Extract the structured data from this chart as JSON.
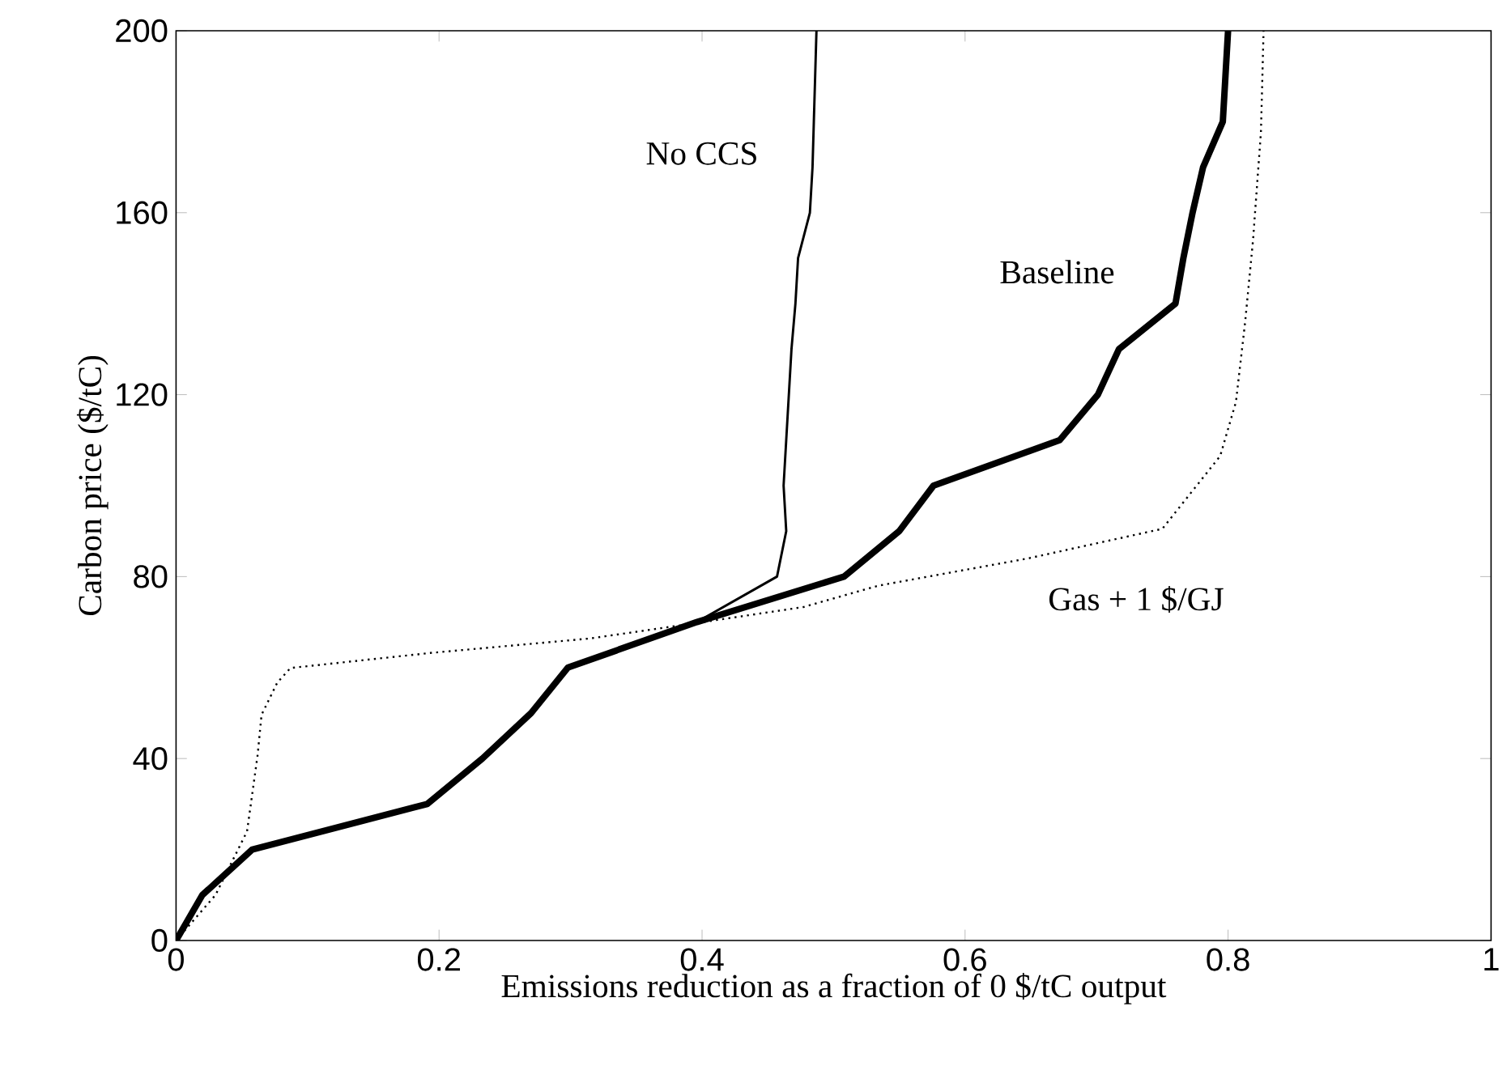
{
  "chart_data": {
    "type": "line",
    "xlabel": "Emissions reduction as a fraction of 0 $/tC output",
    "ylabel": "Carbon price ($/tC)",
    "xlim": [
      0,
      1
    ],
    "ylim": [
      0,
      200
    ],
    "xticks": [
      0,
      0.2,
      0.4,
      0.6,
      0.8,
      1
    ],
    "yticks": [
      0,
      40,
      80,
      120,
      160,
      200
    ],
    "grid": false,
    "legend": false,
    "marker": "none",
    "series": [
      {
        "name": "No CCS",
        "color": "#000000",
        "line_style": "solid",
        "x": [
          0,
          0.02,
          0.058,
          0.191,
          0.233,
          0.27,
          0.298,
          0.396,
          0.457,
          0.464,
          0.462,
          0.464,
          0.466,
          0.468,
          0.471,
          0.473,
          0.482,
          0.484,
          0.485,
          0.486,
          0.487
        ],
        "values": [
          0,
          10,
          20,
          30,
          40,
          50,
          60,
          70,
          80,
          90,
          100,
          110,
          120,
          130,
          140,
          150,
          160,
          170,
          180,
          190,
          200
        ]
      },
      {
        "name": "Baseline",
        "color": "#000000",
        "line_style": "solid",
        "x": [
          0,
          0.02,
          0.058,
          0.191,
          0.233,
          0.27,
          0.298,
          0.396,
          0.508,
          0.55,
          0.576,
          0.672,
          0.701,
          0.717,
          0.76,
          0.766,
          0.773,
          0.781,
          0.796,
          0.798,
          0.8
        ],
        "values": [
          0,
          10,
          20,
          30,
          40,
          50,
          60,
          70,
          80,
          90,
          100,
          110,
          120,
          130,
          140,
          150,
          160,
          170,
          180,
          190,
          200
        ]
      },
      {
        "name": "Gas + 1 $/GJ",
        "color": "#000000",
        "line_style": "dotted",
        "x": [
          0,
          0.03,
          0.054,
          0.062,
          0.065,
          0.077,
          0.087,
          0.193,
          0.315,
          0.396,
          0.477,
          0.534,
          0.648,
          0.75,
          0.794,
          0.806,
          0.813,
          0.819,
          0.825,
          0.827
        ],
        "values": [
          0,
          10,
          24,
          40.7,
          49.6,
          56.7,
          59.9,
          63.2,
          66.4,
          69.8,
          73.3,
          78,
          84,
          90.5,
          106.5,
          118.4,
          136,
          154,
          177.7,
          200
        ]
      }
    ]
  }
}
